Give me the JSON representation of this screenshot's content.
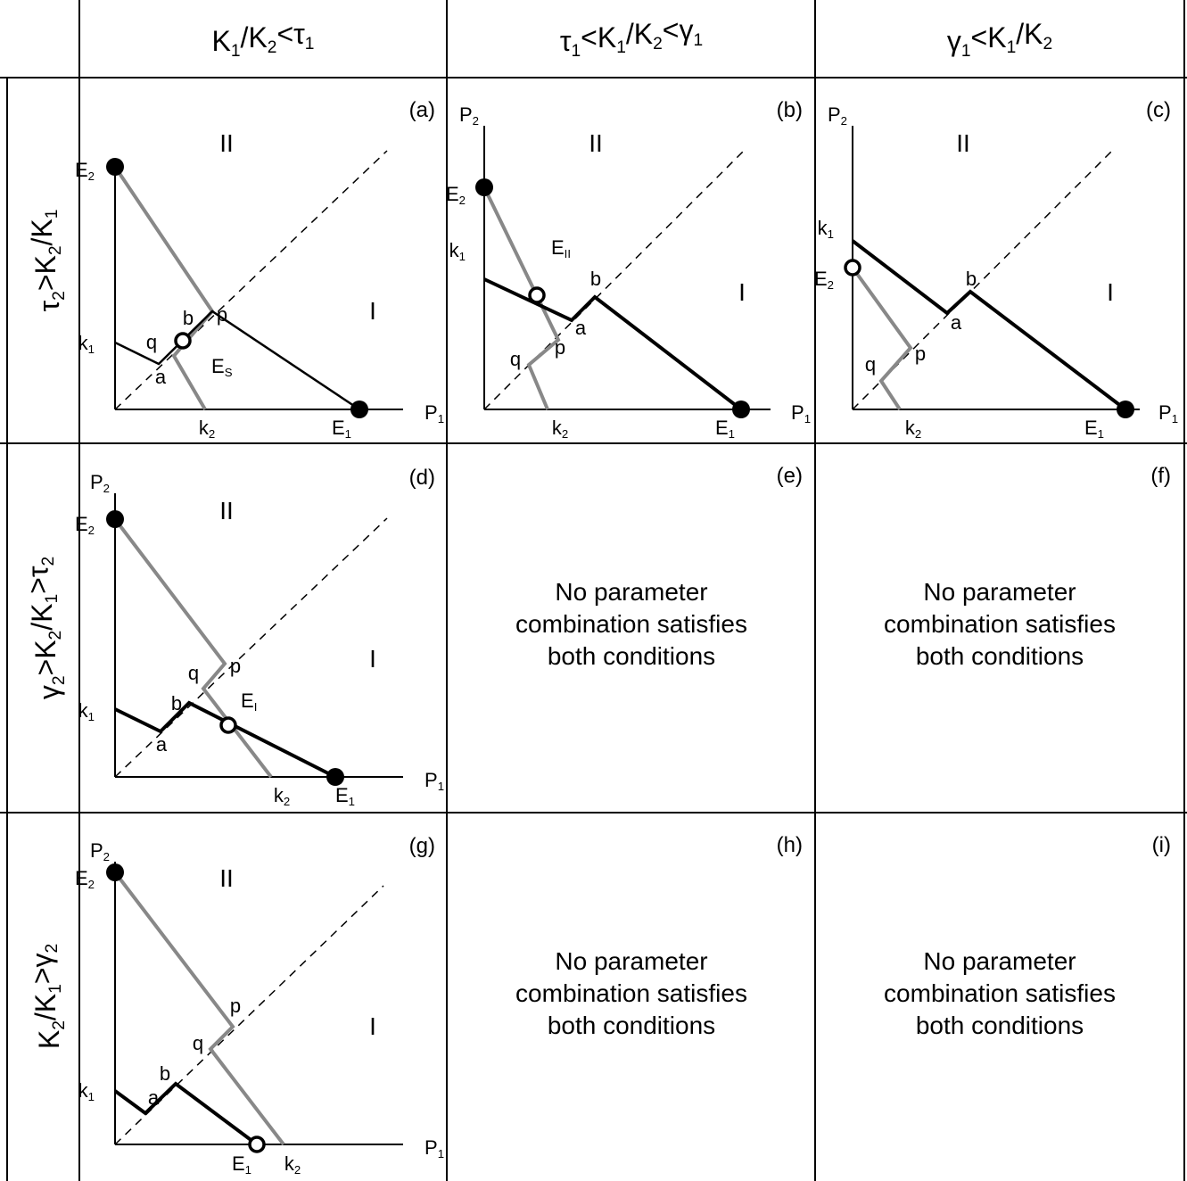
{
  "headers": {
    "columns": [
      [
        [
          "K",
          "1",
          false
        ],
        [
          "/K",
          "2",
          false
        ],
        [
          "<",
          "",
          false
        ],
        [
          "t",
          "1",
          true
        ]
      ],
      [
        [
          "t",
          "1",
          true
        ],
        [
          "<K",
          "1",
          false
        ],
        [
          "/K",
          "2",
          false
        ],
        [
          "<",
          "",
          false
        ],
        [
          "g",
          "1",
          true
        ]
      ],
      [
        [
          "g",
          "1",
          true
        ],
        [
          "<K",
          "1",
          false
        ],
        [
          "/K",
          "2",
          false
        ]
      ]
    ],
    "rows": [
      [
        [
          "t",
          "2",
          true
        ],
        [
          ">K",
          "2",
          false
        ],
        [
          "/K",
          "1",
          false
        ]
      ],
      [
        [
          "g",
          "2",
          true
        ],
        [
          ">K",
          "2",
          false
        ],
        [
          "/K",
          "1",
          false
        ],
        [
          ">",
          "",
          false
        ],
        [
          "t",
          "2",
          true
        ]
      ],
      [
        [
          "K",
          "2",
          false
        ],
        [
          "/K",
          "1",
          false
        ],
        [
          ">",
          "",
          false
        ],
        [
          "g",
          "2",
          true
        ]
      ]
    ]
  },
  "no_combination_text": [
    "No parameter",
    "combination satisfies",
    "both conditions"
  ],
  "panels": [
    {
      "id": "a",
      "tag": "(a)",
      "region_I": "I",
      "region_II": "II",
      "labels": [
        [
          "E",
          "2"
        ],
        [
          "k",
          "1"
        ],
        [
          "q",
          ""
        ],
        [
          "a",
          ""
        ],
        [
          "b",
          ""
        ],
        [
          "p",
          ""
        ],
        [
          "E",
          "S"
        ],
        [
          "k",
          "2"
        ],
        [
          "E",
          "1"
        ],
        [
          "P",
          "1"
        ]
      ]
    },
    {
      "id": "b",
      "tag": "(b)",
      "region_I": "I",
      "region_II": "II",
      "labels": [
        [
          "P",
          "2"
        ],
        [
          "E",
          "2"
        ],
        [
          "k",
          "1"
        ],
        [
          "E",
          "II"
        ],
        [
          "b",
          ""
        ],
        [
          "a",
          ""
        ],
        [
          "p",
          ""
        ],
        [
          "q",
          ""
        ],
        [
          "k",
          "2"
        ],
        [
          "E",
          "1"
        ],
        [
          "P",
          "1"
        ]
      ]
    },
    {
      "id": "c",
      "tag": "(c)",
      "region_I": "I",
      "region_II": "II",
      "labels": [
        [
          "P",
          "2"
        ],
        [
          "k",
          "1"
        ],
        [
          "E",
          "2"
        ],
        [
          "b",
          ""
        ],
        [
          "a",
          ""
        ],
        [
          "p",
          ""
        ],
        [
          "q",
          ""
        ],
        [
          "k",
          "2"
        ],
        [
          "E",
          "1"
        ],
        [
          "P",
          "1"
        ]
      ]
    },
    {
      "id": "d",
      "tag": "(d)",
      "region_I": "I",
      "region_II": "II",
      "labels": [
        [
          "P",
          "2"
        ],
        [
          "E",
          "2"
        ],
        [
          "q",
          ""
        ],
        [
          "p",
          ""
        ],
        [
          "k",
          "1"
        ],
        [
          "b",
          ""
        ],
        [
          "E",
          "I"
        ],
        [
          "a",
          ""
        ],
        [
          "k",
          "2"
        ],
        [
          "E",
          "1"
        ],
        [
          "P",
          "1"
        ]
      ]
    },
    {
      "id": "e",
      "tag": "(e)",
      "empty": true
    },
    {
      "id": "f",
      "tag": "(f)",
      "empty": true
    },
    {
      "id": "g",
      "tag": "(g)",
      "region_I": "I",
      "region_II": "II",
      "labels": [
        [
          "P",
          "2"
        ],
        [
          "E",
          "2"
        ],
        [
          "p",
          ""
        ],
        [
          "q",
          ""
        ],
        [
          "b",
          ""
        ],
        [
          "k",
          "1"
        ],
        [
          "a",
          ""
        ],
        [
          "E",
          "1"
        ],
        [
          "k",
          "2"
        ],
        [
          "P",
          "1"
        ]
      ]
    },
    {
      "id": "h",
      "tag": "(h)",
      "empty": true
    },
    {
      "id": "i",
      "tag": "(i)",
      "empty": true
    }
  ],
  "colors": {
    "isocline_1": "#000000",
    "isocline_2": "#888888",
    "grid": "#000000"
  }
}
